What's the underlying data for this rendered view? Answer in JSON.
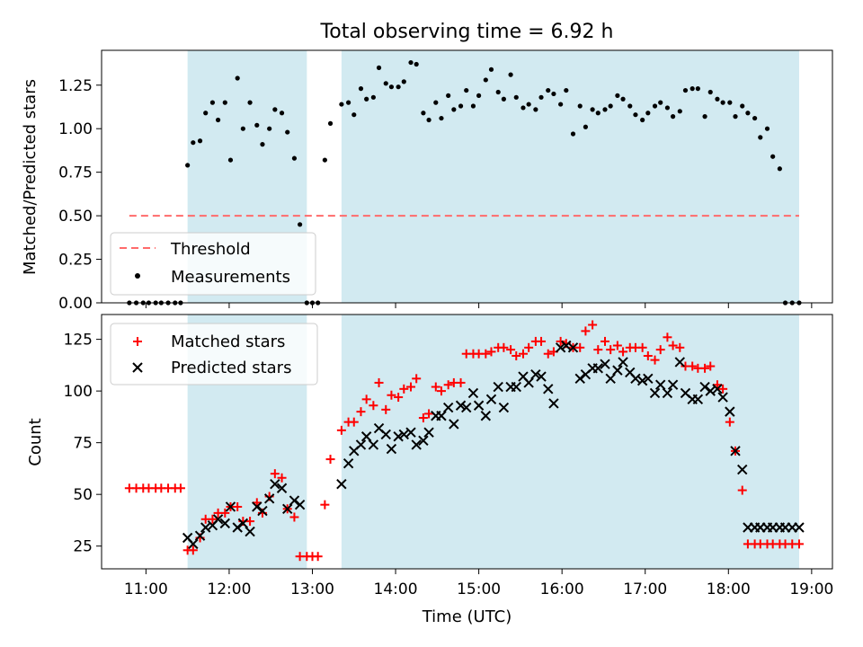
{
  "chart_data": [
    {
      "type": "scatter",
      "title": "Total observing time = 6.92 h",
      "ylabel": "Matched/Predicted stars",
      "xlabel": "",
      "xlim": [
        "10:28",
        "19:15"
      ],
      "ylim": [
        0,
        1.45
      ],
      "x_ticks": [
        "11:00",
        "12:00",
        "13:00",
        "14:00",
        "15:00",
        "16:00",
        "17:00",
        "18:00",
        "19:00"
      ],
      "y_ticks": [
        0.0,
        0.25,
        0.5,
        0.75,
        1.0,
        1.25
      ],
      "y_tick_labels": [
        "0.00",
        "0.25",
        "0.50",
        "0.75",
        "1.00",
        "1.25"
      ],
      "shaded_intervals": [
        [
          "11:30",
          "12:56"
        ],
        [
          "13:21",
          "18:51"
        ]
      ],
      "shade_color": "#add8e6",
      "threshold": {
        "name": "Threshold",
        "value": 0.5,
        "x_start": "10:48",
        "x_end": "18:51",
        "color": "#ff6b6b"
      },
      "legend": {
        "position": "lower-left",
        "entries": [
          "Threshold",
          "Measurements"
        ]
      },
      "series": [
        {
          "name": "Measurements",
          "color": "#000000",
          "marker": "dot",
          "x": [
            "10:48",
            "10:53",
            "10:58",
            "11:02",
            "11:07",
            "11:11",
            "11:16",
            "11:21",
            "11:25",
            "11:30",
            "11:34",
            "11:39",
            "11:43",
            "11:48",
            "11:52",
            "11:57",
            "12:01",
            "12:06",
            "12:10",
            "12:15",
            "12:20",
            "12:24",
            "12:29",
            "12:33",
            "12:38",
            "12:42",
            "12:47",
            "12:51",
            "12:56",
            "13:00",
            "13:04",
            "13:09",
            "13:13",
            "13:21",
            "13:26",
            "13:30",
            "13:35",
            "13:39",
            "13:44",
            "13:48",
            "13:53",
            "13:57",
            "14:02",
            "14:06",
            "14:11",
            "14:15",
            "14:20",
            "14:24",
            "14:29",
            "14:33",
            "14:38",
            "14:42",
            "14:47",
            "14:51",
            "14:56",
            "15:00",
            "15:05",
            "15:09",
            "15:14",
            "15:18",
            "15:23",
            "15:27",
            "15:32",
            "15:36",
            "15:41",
            "15:45",
            "15:50",
            "15:54",
            "15:59",
            "16:03",
            "16:08",
            "16:13",
            "16:17",
            "16:22",
            "16:26",
            "16:31",
            "16:35",
            "16:40",
            "16:44",
            "16:49",
            "16:53",
            "16:58",
            "17:02",
            "17:07",
            "17:11",
            "17:16",
            "17:20",
            "17:25",
            "17:29",
            "17:34",
            "17:38",
            "17:43",
            "17:47",
            "17:52",
            "17:56",
            "18:01",
            "18:05",
            "18:10",
            "18:14",
            "18:19",
            "18:23",
            "18:28",
            "18:32",
            "18:37",
            "18:41",
            "18:46",
            "18:51"
          ],
          "y": [
            0.0,
            0.0,
            0.0,
            0.0,
            0.0,
            0.0,
            0.0,
            0.0,
            0.0,
            0.79,
            0.92,
            0.93,
            1.09,
            1.15,
            1.05,
            1.15,
            0.82,
            1.29,
            1.0,
            1.15,
            1.02,
            0.91,
            1.0,
            1.11,
            1.09,
            0.98,
            0.83,
            0.45,
            0.0,
            0.0,
            0.0,
            0.82,
            1.03,
            1.14,
            1.15,
            1.08,
            1.23,
            1.17,
            1.18,
            1.35,
            1.26,
            1.24,
            1.24,
            1.27,
            1.38,
            1.37,
            1.09,
            1.05,
            1.15,
            1.06,
            1.19,
            1.11,
            1.13,
            1.22,
            1.13,
            1.19,
            1.28,
            1.34,
            1.21,
            1.17,
            1.31,
            1.18,
            1.12,
            1.14,
            1.11,
            1.18,
            1.22,
            1.2,
            1.14,
            1.22,
            0.97,
            1.13,
            1.01,
            1.11,
            1.09,
            1.11,
            1.13,
            1.19,
            1.17,
            1.13,
            1.08,
            1.05,
            1.09,
            1.13,
            1.15,
            1.12,
            1.07,
            1.1,
            1.22,
            1.23,
            1.23,
            1.07,
            1.21,
            1.17,
            1.15,
            1.15,
            1.07,
            1.13,
            1.09,
            1.06,
            0.95,
            1.0,
            0.84,
            0.77,
            0.0,
            0.0,
            0.0
          ]
        }
      ]
    },
    {
      "type": "scatter",
      "title": "",
      "ylabel": "Count",
      "xlabel": "Time (UTC)",
      "xlim": [
        "10:28",
        "19:15"
      ],
      "ylim": [
        14,
        137
      ],
      "x_ticks": [
        "11:00",
        "12:00",
        "13:00",
        "14:00",
        "15:00",
        "16:00",
        "17:00",
        "18:00",
        "19:00"
      ],
      "y_ticks": [
        25,
        50,
        75,
        100,
        125
      ],
      "y_tick_labels": [
        "25",
        "50",
        "75",
        "100",
        "125"
      ],
      "shaded_intervals": [
        [
          "11:30",
          "12:56"
        ],
        [
          "13:21",
          "18:51"
        ]
      ],
      "shade_color": "#add8e6",
      "legend": {
        "position": "top-left",
        "entries": [
          "Matched stars",
          "Predicted stars"
        ]
      },
      "series": [
        {
          "name": "Matched stars",
          "color": "#ff0000",
          "marker": "plus",
          "x": [
            "10:48",
            "10:53",
            "10:58",
            "11:02",
            "11:07",
            "11:11",
            "11:16",
            "11:21",
            "11:25",
            "11:30",
            "11:34",
            "11:39",
            "11:43",
            "11:48",
            "11:52",
            "11:57",
            "12:01",
            "12:06",
            "12:10",
            "12:15",
            "12:20",
            "12:24",
            "12:29",
            "12:33",
            "12:38",
            "12:42",
            "12:47",
            "12:51",
            "12:56",
            "13:00",
            "13:04",
            "13:09",
            "13:13",
            "13:21",
            "13:26",
            "13:30",
            "13:35",
            "13:39",
            "13:44",
            "13:48",
            "13:53",
            "13:57",
            "14:02",
            "14:06",
            "14:11",
            "14:15",
            "14:20",
            "14:24",
            "14:29",
            "14:33",
            "14:38",
            "14:42",
            "14:47",
            "14:51",
            "14:56",
            "15:00",
            "15:05",
            "15:09",
            "15:14",
            "15:18",
            "15:23",
            "15:27",
            "15:32",
            "15:36",
            "15:41",
            "15:45",
            "15:50",
            "15:54",
            "15:59",
            "16:03",
            "16:08",
            "16:13",
            "16:17",
            "16:22",
            "16:26",
            "16:31",
            "16:35",
            "16:40",
            "16:44",
            "16:49",
            "16:53",
            "16:58",
            "17:02",
            "17:07",
            "17:11",
            "17:16",
            "17:20",
            "17:25",
            "17:29",
            "17:34",
            "17:38",
            "17:43",
            "17:47",
            "17:52",
            "17:56",
            "18:01",
            "18:05",
            "18:10",
            "18:14",
            "18:19",
            "18:23",
            "18:28",
            "18:32",
            "18:37",
            "18:41",
            "18:46",
            "18:51"
          ],
          "y": [
            53,
            53,
            53,
            53,
            53,
            53,
            53,
            53,
            53,
            23,
            23,
            29,
            38,
            38,
            41,
            41,
            44,
            44,
            37,
            37,
            46,
            41,
            49,
            60,
            58,
            43,
            39,
            20,
            20,
            20,
            20,
            45,
            67,
            81,
            85,
            85,
            90,
            96,
            93,
            104,
            91,
            98,
            97,
            101,
            102,
            106,
            87,
            89,
            102,
            100,
            103,
            104,
            104,
            118,
            118,
            118,
            118,
            119,
            121,
            121,
            120,
            117,
            118,
            121,
            124,
            124,
            118,
            119,
            124,
            123,
            121,
            121,
            129,
            132,
            120,
            124,
            120,
            122,
            119,
            121,
            121,
            121,
            117,
            115,
            120,
            126,
            122,
            121,
            112,
            112,
            111,
            111,
            112,
            103,
            101,
            85,
            71,
            52,
            26,
            26,
            26,
            26,
            26,
            26,
            26,
            26,
            26
          ],
          "note": ""
        },
        {
          "name": "Predicted stars",
          "color": "#000000",
          "marker": "x",
          "x": [
            "11:30",
            "11:34",
            "11:39",
            "11:43",
            "11:48",
            "11:52",
            "11:57",
            "12:01",
            "12:06",
            "12:10",
            "12:15",
            "12:20",
            "12:24",
            "12:29",
            "12:33",
            "12:38",
            "12:42",
            "12:47",
            "12:51",
            "13:21",
            "13:26",
            "13:30",
            "13:35",
            "13:39",
            "13:44",
            "13:48",
            "13:53",
            "13:57",
            "14:02",
            "14:06",
            "14:11",
            "14:15",
            "14:20",
            "14:24",
            "14:29",
            "14:33",
            "14:38",
            "14:42",
            "14:47",
            "14:51",
            "14:56",
            "15:00",
            "15:05",
            "15:09",
            "15:14",
            "15:18",
            "15:23",
            "15:27",
            "15:32",
            "15:36",
            "15:41",
            "15:45",
            "15:50",
            "15:54",
            "15:59",
            "16:03",
            "16:08",
            "16:13",
            "16:17",
            "16:22",
            "16:26",
            "16:31",
            "16:35",
            "16:40",
            "16:44",
            "16:49",
            "16:53",
            "16:58",
            "17:02",
            "17:07",
            "17:11",
            "17:16",
            "17:20",
            "17:25",
            "17:29",
            "17:34",
            "17:38",
            "17:43",
            "17:47",
            "17:52",
            "17:56",
            "18:01",
            "18:05",
            "18:10",
            "18:14",
            "18:19",
            "18:23",
            "18:28",
            "18:32",
            "18:37",
            "18:41",
            "18:46",
            "18:51"
          ],
          "y": [
            29,
            26,
            30,
            34,
            35,
            38,
            36,
            44,
            34,
            36,
            32,
            44,
            42,
            48,
            55,
            53,
            43,
            47,
            45,
            55,
            65,
            71,
            74,
            78,
            74,
            82,
            79,
            72,
            78,
            79,
            80,
            74,
            76,
            80,
            88,
            88,
            92,
            84,
            93,
            92,
            99,
            93,
            88,
            96,
            102,
            92,
            102,
            102,
            107,
            104,
            108,
            107,
            101,
            94,
            121,
            122,
            121,
            106,
            108,
            111,
            111,
            113,
            106,
            110,
            114,
            109,
            106,
            105,
            106,
            99,
            103,
            99,
            103,
            114,
            99,
            96,
            96,
            102,
            100,
            101,
            97,
            90,
            71,
            62,
            34,
            34,
            34,
            34,
            34,
            34,
            34,
            34,
            34
          ],
          "note": ""
        }
      ]
    }
  ]
}
